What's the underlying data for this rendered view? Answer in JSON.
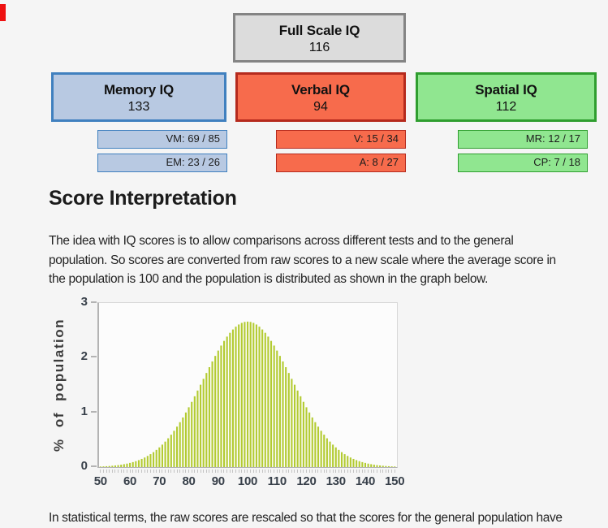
{
  "page": {
    "background_color": "#f5f5f5",
    "edge_marker_color": "#ee1111"
  },
  "score_summary": {
    "full_scale": {
      "label": "Full Scale IQ",
      "value": "116",
      "fill": "#dcdcdc",
      "border": "#848484"
    },
    "domains": [
      {
        "label": "Memory IQ",
        "value": "133",
        "fill": "#b8c9e2",
        "border": "#4080bf",
        "subtests": [
          "VM: 69 / 85",
          "EM: 23 / 26"
        ]
      },
      {
        "label": "Verbal IQ",
        "value": "94",
        "fill": "#f76b4c",
        "border": "#b52a1d",
        "subtests": [
          "V: 15 / 34",
          "A: 8 / 27"
        ]
      },
      {
        "label": "Spatial IQ",
        "value": "112",
        "fill": "#90e690",
        "border": "#2f9e2f",
        "subtests": [
          "MR: 12 / 17",
          "CP: 7 / 18"
        ]
      }
    ]
  },
  "interpretation": {
    "heading": "Score Interpretation",
    "lines": [
      "The idea with IQ scores is to allow comparisons across different tests and to the general",
      "population. So scores are converted from raw scores to a new scale where the average score in",
      "the population is 100 and the population is distributed as shown in the graph below."
    ],
    "footer_line": "In statistical terms, the raw scores are rescaled so that the scores for the general population have"
  },
  "chart_data": {
    "type": "bar",
    "title": "",
    "xlabel": "",
    "ylabel": "% of population",
    "x_min": 50,
    "x_max": 150,
    "x_step": 1,
    "xticks": [
      50,
      60,
      70,
      80,
      90,
      100,
      110,
      120,
      130,
      140,
      150
    ],
    "yticks": [
      0,
      1,
      2,
      3
    ],
    "ylim": [
      0,
      3
    ],
    "grid": false,
    "legend": false,
    "bar_color": "#b3cb31",
    "distribution": {
      "shape": "normal",
      "mean": 100,
      "sd": 15,
      "unit": "percent of population per IQ point"
    },
    "peak_percent": 2.66,
    "sampled_points": {
      "x": [
        50,
        55,
        60,
        65,
        70,
        75,
        80,
        85,
        90,
        95,
        100,
        105,
        110,
        115,
        120,
        125,
        130,
        135,
        140,
        145,
        150
      ],
      "y": [
        0.01,
        0.03,
        0.08,
        0.17,
        0.36,
        0.66,
        1.09,
        1.61,
        2.13,
        2.52,
        2.66,
        2.52,
        2.13,
        1.61,
        1.09,
        0.66,
        0.36,
        0.17,
        0.08,
        0.03,
        0.01
      ]
    }
  }
}
